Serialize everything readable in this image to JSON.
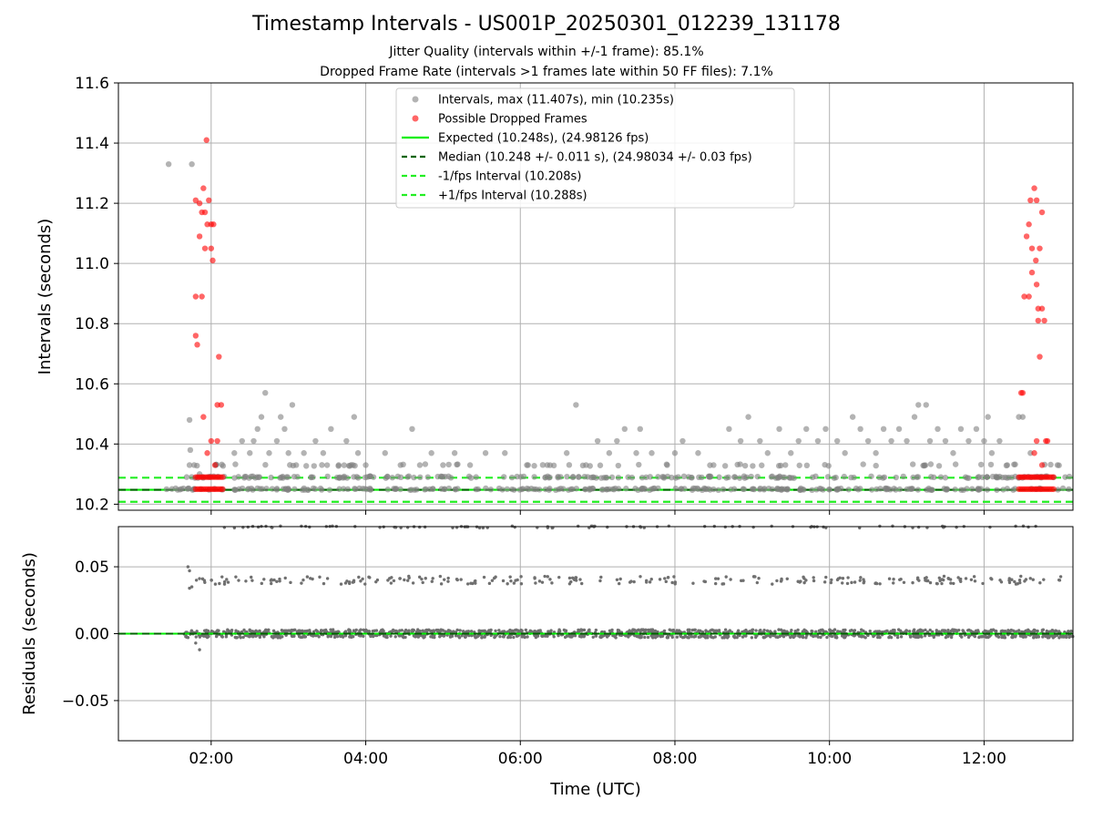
{
  "title": "Timestamp Intervals - US001P_20250301_012239_131178",
  "subtitle_1": "Jitter Quality (intervals within +/-1 frame): 85.1%",
  "subtitle_2": "Dropped Frame Rate (intervals >1 frames late within 50 FF files): 7.1%",
  "colors": {
    "intervals": "#808080",
    "dropped": "#ff0000",
    "expected": "#00ee00",
    "median": "#006400",
    "fps_band": "#22ee22",
    "grid": "#b0b0b0"
  },
  "chart_data": [
    {
      "type": "scatter",
      "name": "intervals-panel",
      "xlabel": "",
      "ylabel": "Intervals (seconds)",
      "xlim_hours": [
        0.8,
        13.15
      ],
      "ylim": [
        10.18,
        11.6
      ],
      "yticks": [
        10.2,
        10.4,
        10.6,
        10.8,
        11.0,
        11.2,
        11.4,
        11.6
      ],
      "ytick_labels": [
        "10.2",
        "10.4",
        "10.6",
        "10.8",
        "11.0",
        "11.2",
        "11.4",
        "11.6"
      ],
      "xticks_hours": [
        2,
        4,
        6,
        8,
        10,
        12
      ],
      "grid": true,
      "legend_position": "upper-center",
      "legend": [
        "Intervals, max (11.407s), min (10.235s)",
        "Possible Dropped Frames",
        "Expected (10.248s), (24.98126 fps)",
        "Median (10.248 +/- 0.011 s), (24.98034 +/- 0.03 fps)",
        "-1/fps Interval (10.208s)",
        "+1/fps Interval (10.288s)"
      ],
      "lines": {
        "expected": 10.248,
        "median": 10.248,
        "minus_fps": 10.208,
        "plus_fps": 10.288
      },
      "series": [
        {
          "name": "Intervals, max (11.407s), min (10.235s)",
          "points": [
            [
              1.45,
              11.33
            ],
            [
              1.75,
              11.33
            ],
            [
              1.72,
              10.48
            ],
            [
              1.73,
              10.38
            ],
            [
              1.72,
              10.33
            ],
            [
              1.78,
              10.33
            ],
            [
              1.85,
              10.3
            ],
            [
              2.3,
              10.37
            ],
            [
              2.4,
              10.41
            ],
            [
              2.5,
              10.37
            ],
            [
              2.55,
              10.41
            ],
            [
              2.6,
              10.45
            ],
            [
              2.65,
              10.49
            ],
            [
              2.7,
              10.57
            ],
            [
              2.75,
              10.37
            ],
            [
              2.85,
              10.41
            ],
            [
              2.9,
              10.49
            ],
            [
              2.95,
              10.45
            ],
            [
              3.0,
              10.37
            ],
            [
              3.05,
              10.53
            ],
            [
              3.1,
              10.33
            ],
            [
              3.2,
              10.37
            ],
            [
              3.35,
              10.41
            ],
            [
              3.45,
              10.37
            ],
            [
              3.55,
              10.45
            ],
            [
              3.65,
              10.33
            ],
            [
              3.75,
              10.41
            ],
            [
              3.85,
              10.49
            ],
            [
              3.9,
              10.37
            ],
            [
              4.0,
              10.33
            ],
            [
              4.1,
              10.29
            ],
            [
              4.25,
              10.37
            ],
            [
              4.45,
              10.33
            ],
            [
              4.6,
              10.45
            ],
            [
              4.7,
              10.33
            ],
            [
              4.85,
              10.37
            ],
            [
              5.0,
              10.33
            ],
            [
              5.15,
              10.37
            ],
            [
              5.35,
              10.33
            ],
            [
              5.55,
              10.37
            ],
            [
              5.8,
              10.37
            ],
            [
              6.1,
              10.33
            ],
            [
              6.35,
              10.33
            ],
            [
              6.6,
              10.37
            ],
            [
              6.72,
              10.53
            ],
            [
              6.85,
              10.33
            ],
            [
              7.0,
              10.41
            ],
            [
              7.15,
              10.37
            ],
            [
              7.25,
              10.41
            ],
            [
              7.35,
              10.45
            ],
            [
              7.5,
              10.37
            ],
            [
              7.55,
              10.45
            ],
            [
              7.7,
              10.37
            ],
            [
              7.9,
              10.33
            ],
            [
              8.0,
              10.37
            ],
            [
              8.1,
              10.41
            ],
            [
              8.3,
              10.37
            ],
            [
              8.5,
              10.33
            ],
            [
              8.7,
              10.45
            ],
            [
              8.85,
              10.41
            ],
            [
              8.95,
              10.49
            ],
            [
              9.1,
              10.41
            ],
            [
              9.2,
              10.37
            ],
            [
              9.35,
              10.45
            ],
            [
              9.5,
              10.37
            ],
            [
              9.6,
              10.41
            ],
            [
              9.7,
              10.45
            ],
            [
              9.85,
              10.41
            ],
            [
              9.95,
              10.45
            ],
            [
              10.1,
              10.41
            ],
            [
              10.2,
              10.37
            ],
            [
              10.3,
              10.49
            ],
            [
              10.4,
              10.45
            ],
            [
              10.5,
              10.41
            ],
            [
              10.6,
              10.37
            ],
            [
              10.7,
              10.45
            ],
            [
              10.8,
              10.41
            ],
            [
              10.9,
              10.45
            ],
            [
              11.0,
              10.41
            ],
            [
              11.1,
              10.49
            ],
            [
              11.15,
              10.53
            ],
            [
              11.25,
              10.53
            ],
            [
              11.3,
              10.41
            ],
            [
              11.4,
              10.45
            ],
            [
              11.5,
              10.41
            ],
            [
              11.6,
              10.37
            ],
            [
              11.7,
              10.45
            ],
            [
              11.8,
              10.41
            ],
            [
              11.9,
              10.45
            ],
            [
              12.0,
              10.41
            ],
            [
              12.05,
              10.49
            ],
            [
              12.1,
              10.37
            ],
            [
              12.2,
              10.41
            ],
            [
              12.3,
              10.33
            ],
            [
              12.45,
              10.49
            ],
            [
              12.5,
              10.49
            ],
            [
              12.6,
              10.37
            ],
            [
              12.95,
              10.33
            ],
            [
              13.05,
              10.29
            ]
          ]
        },
        {
          "name": "Possible Dropped Frames",
          "points": [
            [
              1.8,
              11.21
            ],
            [
              1.85,
              11.2
            ],
            [
              1.85,
              11.09
            ],
            [
              1.88,
              11.17
            ],
            [
              1.9,
              11.25
            ],
            [
              1.92,
              11.17
            ],
            [
              1.95,
              11.13
            ],
            [
              1.94,
              11.41
            ],
            [
              2.0,
              11.13
            ],
            [
              1.97,
              11.21
            ],
            [
              2.03,
              11.13
            ],
            [
              2.0,
              11.05
            ],
            [
              2.02,
              11.01
            ],
            [
              1.92,
              11.05
            ],
            [
              1.8,
              10.89
            ],
            [
              1.88,
              10.89
            ],
            [
              1.8,
              10.76
            ],
            [
              1.82,
              10.73
            ],
            [
              1.9,
              10.49
            ],
            [
              2.1,
              10.69
            ],
            [
              2.08,
              10.53
            ],
            [
              2.13,
              10.53
            ],
            [
              2.0,
              10.41
            ],
            [
              2.08,
              10.41
            ],
            [
              1.95,
              10.37
            ],
            [
              2.05,
              10.33
            ],
            [
              12.55,
              11.09
            ],
            [
              12.58,
              11.13
            ],
            [
              12.6,
              11.21
            ],
            [
              12.65,
              11.25
            ],
            [
              12.68,
              11.21
            ],
            [
              12.75,
              11.17
            ],
            [
              12.62,
              11.05
            ],
            [
              12.62,
              10.97
            ],
            [
              12.67,
              11.01
            ],
            [
              12.72,
              11.05
            ],
            [
              12.68,
              10.93
            ],
            [
              12.52,
              10.89
            ],
            [
              12.58,
              10.89
            ],
            [
              12.7,
              10.85
            ],
            [
              12.75,
              10.85
            ],
            [
              12.7,
              10.81
            ],
            [
              12.78,
              10.81
            ],
            [
              12.72,
              10.69
            ],
            [
              12.48,
              10.57
            ],
            [
              12.5,
              10.57
            ],
            [
              12.68,
              10.41
            ],
            [
              12.8,
              10.41
            ],
            [
              12.82,
              10.41
            ],
            [
              12.65,
              10.37
            ],
            [
              12.75,
              10.33
            ]
          ]
        }
      ]
    },
    {
      "type": "scatter",
      "name": "residuals-panel",
      "xlabel": "Time (UTC)",
      "ylabel": "Residuals (seconds)",
      "xlim_hours": [
        0.8,
        13.15
      ],
      "ylim": [
        -0.08,
        0.08
      ],
      "yticks": [
        0.05,
        0.0,
        -0.05
      ],
      "ytick_labels": [
        "0.05",
        "0.00",
        "−0.05"
      ],
      "xticks_hours": [
        2,
        4,
        6,
        8,
        10,
        12
      ],
      "xtick_labels": [
        "02:00",
        "04:00",
        "06:00",
        "08:00",
        "10:00",
        "12:00"
      ],
      "grid": true,
      "zero_line": 0.0,
      "bands": {
        "main": 0.0,
        "spread": 0.002,
        "upper": 0.04,
        "upper_spread": 0.003,
        "start_hour": 1.65,
        "end_hour": 13.15
      },
      "outliers": [
        [
          1.7,
          0.05
        ],
        [
          1.72,
          0.047
        ],
        [
          1.75,
          0.035
        ],
        [
          1.72,
          0.034
        ],
        [
          1.85,
          -0.012
        ],
        [
          1.8,
          -0.007
        ]
      ]
    }
  ]
}
